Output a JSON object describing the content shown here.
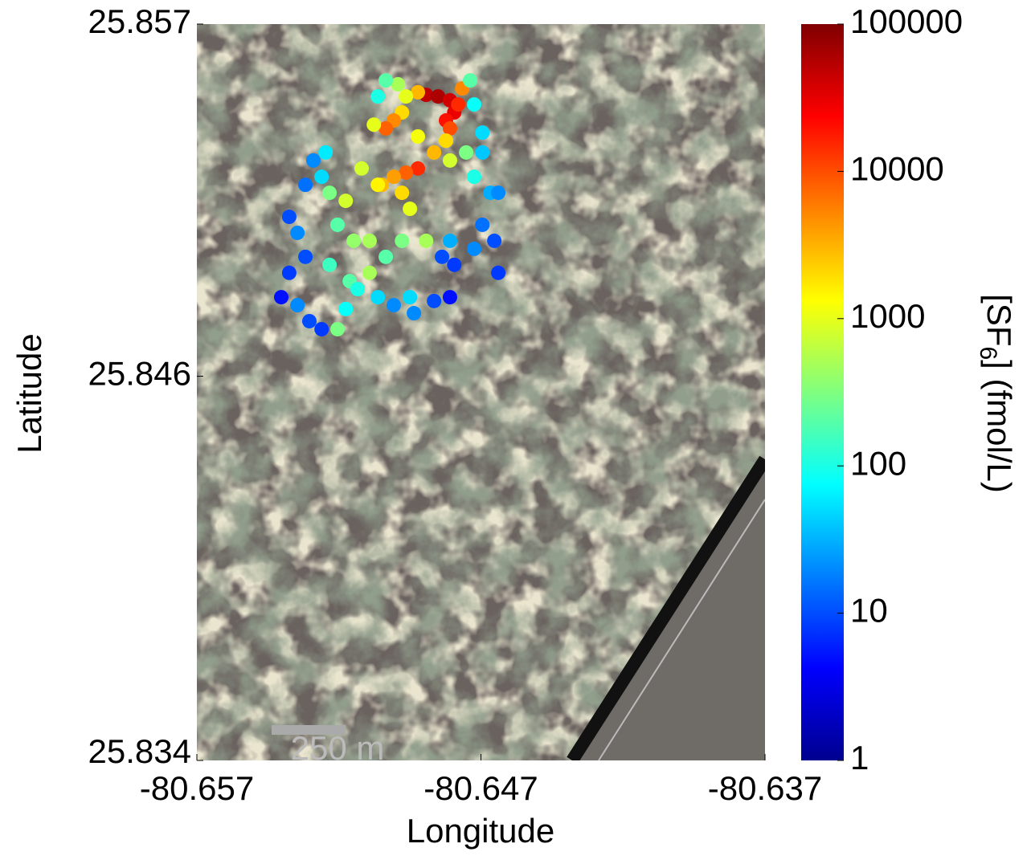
{
  "chart_data": {
    "type": "scatter",
    "xlabel": "Longitude",
    "ylabel": "Latitude",
    "colorbar_label": {
      "main": "[SF",
      "sub": "6",
      "rest": "]  (fmol/L)"
    },
    "scale_bar": "250 m",
    "xlim": [
      -80.657,
      -80.637
    ],
    "xticks": [
      -80.657,
      -80.647,
      -80.637
    ],
    "ylim": [
      25.834,
      25.857
    ],
    "yticks": [
      25.834,
      25.846,
      25.857
    ],
    "colorbar_lim": [
      1,
      100000
    ],
    "colorbar_ticks": [
      1,
      10,
      100,
      1000,
      10000,
      100000
    ],
    "colorbar_log": true,
    "colormap": "jet",
    "x": [
      -80.64893,
      -80.64851,
      -80.64809,
      -80.64794,
      -80.64823,
      -80.6478,
      -80.64809,
      -80.64766,
      -80.64922,
      -80.64964,
      -80.64992,
      -80.65035,
      -80.65063,
      -80.64978,
      -80.65007,
      -80.65035,
      -80.65077,
      -80.64922,
      -80.64964,
      -80.65007,
      -80.65049,
      -80.64978,
      -80.6495,
      -80.64865,
      -80.64823,
      -80.64809,
      -80.64752,
      -80.64695,
      -80.64724,
      -80.64667,
      -80.64639,
      -80.64695,
      -80.64653,
      -80.64639,
      -80.64724,
      -80.64809,
      -80.64837,
      -80.64794,
      -80.64893,
      -80.64978,
      -80.65035,
      -80.65092,
      -80.65148,
      -80.65205,
      -80.65176,
      -80.65233,
      -80.65261,
      -80.65247,
      -80.6529,
      -80.65318,
      -80.65375,
      -80.65346,
      -80.65318,
      -80.65375,
      -80.65403,
      -80.65346,
      -80.65304,
      -80.65261,
      -80.65205,
      -80.65162,
      -80.65134,
      -80.65092,
      -80.65063,
      -80.65007,
      -80.6495,
      -80.64936,
      -80.64865,
      -80.64809,
      -80.65063,
      -80.6512,
      -80.64922,
      -80.64738,
      -80.64724,
      -80.64695,
      -80.65233,
      -80.65176
    ],
    "y": [
      25.85479,
      25.85474,
      25.85462,
      25.85424,
      25.85399,
      25.85449,
      25.85374,
      25.85499,
      25.85487,
      25.85474,
      25.85512,
      25.85524,
      25.85474,
      25.85424,
      25.85399,
      25.85374,
      25.85386,
      25.85249,
      25.85236,
      25.85223,
      25.85198,
      25.85173,
      25.85123,
      25.85299,
      25.85336,
      25.85274,
      25.85299,
      25.85299,
      25.85223,
      25.85173,
      25.85173,
      25.85073,
      25.85023,
      25.84923,
      25.84998,
      25.85023,
      25.84973,
      25.84948,
      25.85023,
      25.85023,
      25.84973,
      25.85023,
      25.85023,
      25.85073,
      25.85148,
      25.85173,
      25.85223,
      25.85299,
      25.85274,
      25.85198,
      25.85098,
      25.85048,
      25.84973,
      25.84923,
      25.84847,
      25.84822,
      25.84772,
      25.84747,
      25.84747,
      25.84897,
      25.84872,
      25.84923,
      25.84847,
      25.84822,
      25.84847,
      25.84797,
      25.84835,
      25.84847,
      25.85198,
      25.85249,
      25.85349,
      25.85524,
      25.85449,
      25.85361,
      25.84948,
      25.8481
    ],
    "values": [
      50000,
      60000,
      40000,
      30000,
      20000,
      15000,
      10000,
      5000,
      3000,
      1000,
      500,
      200,
      100,
      2000,
      5000,
      8000,
      1000,
      15000,
      8000,
      4000,
      3000,
      2000,
      1000,
      3000,
      2000,
      800,
      300,
      40,
      100,
      30,
      20,
      15,
      10,
      8,
      20,
      30,
      10,
      8,
      500,
      300,
      200,
      500,
      400,
      200,
      800,
      300,
      50,
      60,
      20,
      15,
      10,
      20,
      10,
      8,
      5,
      20,
      10,
      8,
      300,
      200,
      100,
      500,
      50,
      20,
      50,
      20,
      10,
      5,
      1500,
      800,
      1200,
      200,
      80,
      50,
      150,
      80
    ]
  }
}
